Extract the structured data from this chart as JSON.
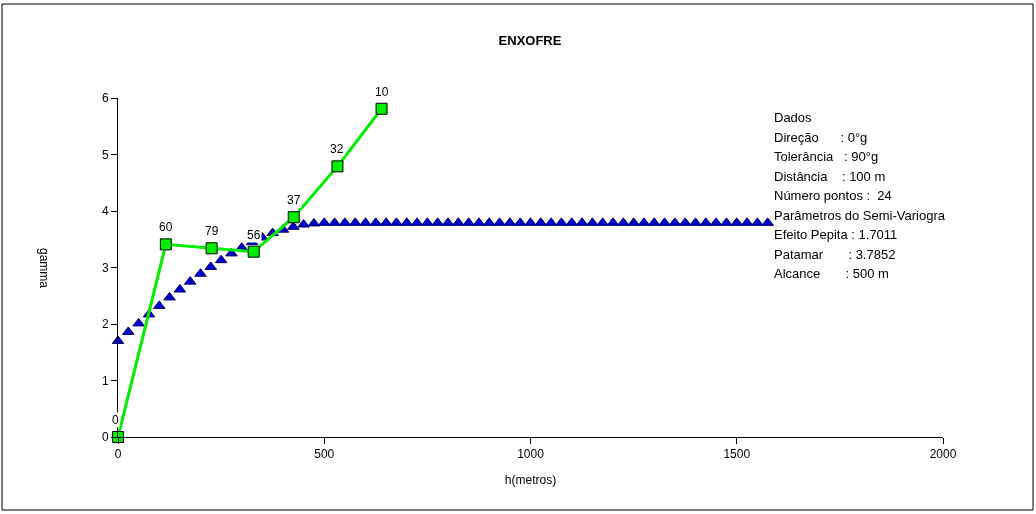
{
  "chart_data": {
    "type": "line",
    "title": "ENXOFRE",
    "xlabel": "h(metros)",
    "ylabel": "gamma",
    "xlim": [
      0,
      2000
    ],
    "xticks": [
      0,
      500,
      1000,
      1500,
      2000
    ],
    "ylim": [
      0,
      6
    ],
    "yticks": [
      0,
      1,
      2,
      3,
      4,
      5,
      6
    ],
    "series": [
      {
        "type": "scatter",
        "marker": "triangle",
        "color": "#0000cc",
        "x": [
          0,
          25,
          50,
          75,
          100,
          125,
          150,
          175,
          200,
          225,
          250,
          275,
          300,
          325,
          350,
          375,
          400,
          425,
          450,
          475,
          500,
          525,
          550,
          575,
          600,
          625,
          650,
          675,
          700,
          725,
          750,
          775,
          800,
          825,
          850,
          875,
          900,
          925,
          950,
          975,
          1000,
          1025,
          1050,
          1075,
          1100,
          1125,
          1150,
          1175,
          1200,
          1225,
          1250,
          1275,
          1300,
          1325,
          1350,
          1375,
          1400,
          1425,
          1450,
          1475,
          1500,
          1525,
          1550,
          1575
        ],
        "values": [
          1.7,
          1.86,
          2.01,
          2.17,
          2.32,
          2.47,
          2.61,
          2.75,
          2.89,
          3.01,
          3.13,
          3.25,
          3.35,
          3.45,
          3.53,
          3.61,
          3.67,
          3.72,
          3.76,
          3.78,
          3.79,
          3.79,
          3.79,
          3.79,
          3.79,
          3.79,
          3.79,
          3.79,
          3.79,
          3.79,
          3.79,
          3.79,
          3.79,
          3.79,
          3.79,
          3.79,
          3.79,
          3.79,
          3.79,
          3.79,
          3.79,
          3.79,
          3.79,
          3.79,
          3.79,
          3.79,
          3.79,
          3.79,
          3.79,
          3.79,
          3.79,
          3.79,
          3.79,
          3.79,
          3.79,
          3.79,
          3.79,
          3.79,
          3.79,
          3.79,
          3.79,
          3.79,
          3.79,
          3.79
        ]
      },
      {
        "marker": "square",
        "line_style": "solid",
        "color": "#00ee00",
        "x": [
          0,
          116,
          227,
          329,
          426,
          532,
          639
        ],
        "values": [
          0,
          3.41,
          3.34,
          3.28,
          3.89,
          4.79,
          5.81
        ]
      }
    ],
    "annotations": [
      {
        "text": "0",
        "x": 0,
        "y": 0
      },
      {
        "text": "60",
        "x": 116,
        "y": 3.41
      },
      {
        "text": "79",
        "x": 227,
        "y": 3.34
      },
      {
        "text": "56",
        "x": 329,
        "y": 3.28
      },
      {
        "text": "37",
        "x": 426,
        "y": 3.89
      },
      {
        "text": "32",
        "x": 532,
        "y": 4.79
      },
      {
        "text": "10",
        "x": 639,
        "y": 5.81
      },
      "Dados",
      "Direção      : 0°g",
      "Tolerância   : 90°g",
      "Distância    : 100 m",
      "Número pontos :  24",
      "Parâmetros do Semi-Variogra",
      "Efeito Pepita : 1.7011",
      "Patamar       : 3.7852",
      "Alcance       : 500 m"
    ]
  }
}
